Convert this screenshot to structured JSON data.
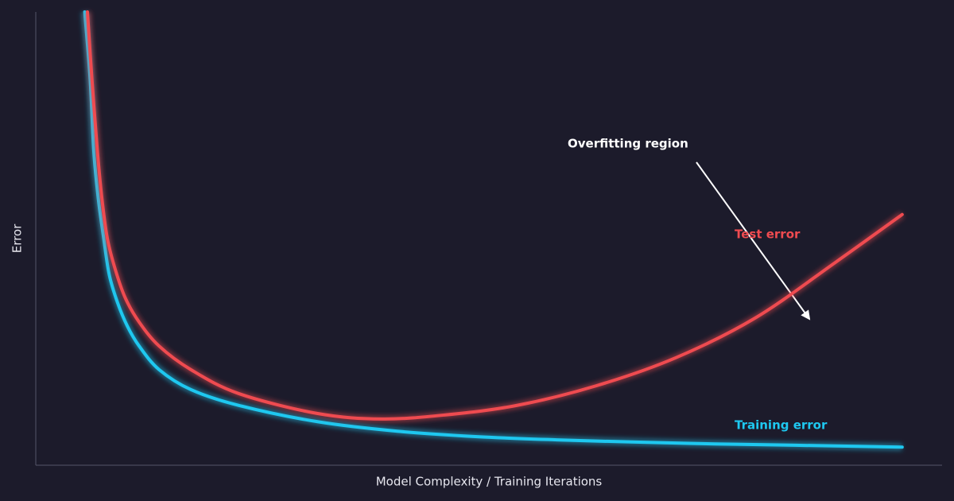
{
  "chart_data": {
    "type": "line",
    "xlabel": "Model Complexity / Training Iterations",
    "ylabel": "Error",
    "annotation": "Overfitting region",
    "xlim": [
      0,
      100
    ],
    "ylim": [
      0,
      100
    ],
    "grid": false,
    "series": [
      {
        "name": "Training error",
        "color": "#1ec8f0",
        "x": [
          5.4,
          6.0,
          6.4,
          6.9,
          7.5,
          8.1,
          9.0,
          10.1,
          11.4,
          13.6,
          17.1,
          22.4,
          31.1,
          39.9,
          48.7,
          57.5,
          66.2,
          75.0,
          83.8,
          95.6
        ],
        "values": [
          100,
          85.1,
          69.3,
          58.8,
          50.0,
          42.1,
          36.0,
          30.7,
          26.3,
          21.1,
          16.7,
          13.2,
          9.6,
          7.5,
          6.3,
          5.6,
          5.1,
          4.7,
          4.4,
          4.0
        ]
      },
      {
        "name": "Test error",
        "color": "#ef4b50",
        "x": [
          5.7,
          6.2,
          6.8,
          7.3,
          7.9,
          8.8,
          9.9,
          11.4,
          13.6,
          17.1,
          22.4,
          31.1,
          38.2,
          45.2,
          53.1,
          61.8,
          70.6,
          79.4,
          88.2,
          95.6
        ],
        "values": [
          100,
          85.1,
          69.3,
          58.8,
          50.0,
          43.0,
          36.8,
          31.6,
          26.3,
          21.1,
          15.8,
          11.4,
          10.2,
          11.1,
          13.2,
          17.5,
          23.7,
          32.5,
          44.7,
          55.3
        ]
      }
    ]
  }
}
